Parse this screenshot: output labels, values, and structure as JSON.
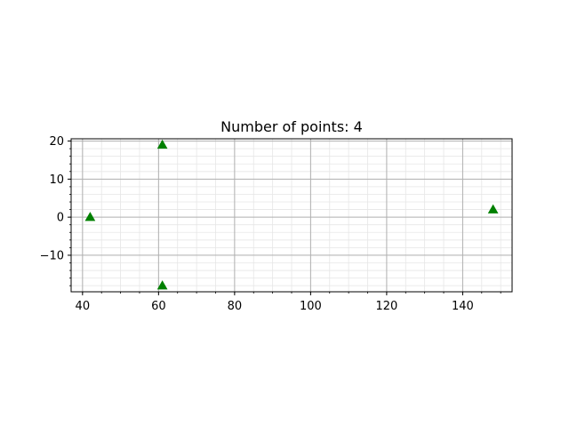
{
  "chart_data": {
    "type": "scatter",
    "title": "Number of points: 4",
    "xlabel": "",
    "ylabel": "",
    "xlim": [
      37,
      153
    ],
    "ylim": [
      -19.6,
      20.6
    ],
    "x_ticks": [
      40,
      60,
      80,
      100,
      120,
      140
    ],
    "x_tick_labels": [
      "40",
      "60",
      "80",
      "100",
      "120",
      "140"
    ],
    "y_ticks": [
      -10,
      0,
      10,
      20
    ],
    "y_tick_labels": [
      "−10",
      "0",
      "10",
      "20"
    ],
    "x_minor_step": 5,
    "y_minor_step": 2,
    "grid": "major and minor",
    "legend": "none",
    "marker": "triangle-up",
    "colors": {
      "marker": "#008000",
      "major_grid": "#b0b0b0",
      "minor_grid": "#e6e6e6"
    },
    "points": [
      {
        "x": 42,
        "y": 0
      },
      {
        "x": 61,
        "y": 19
      },
      {
        "x": 61,
        "y": -18
      },
      {
        "x": 148,
        "y": 2
      }
    ]
  }
}
